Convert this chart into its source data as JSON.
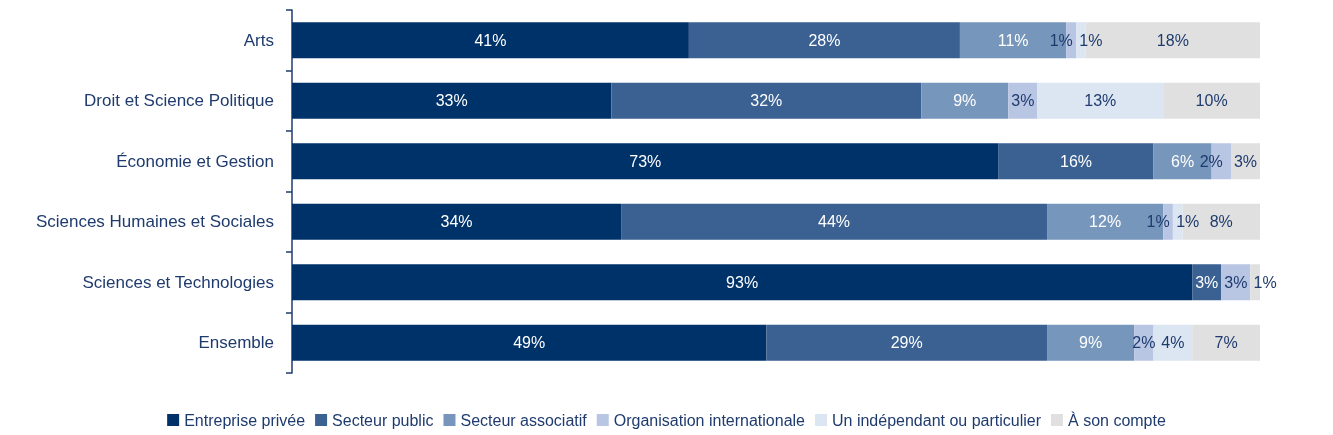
{
  "chart_data": {
    "type": "bar",
    "orientation": "horizontal",
    "stacked": true,
    "legend": "bottom",
    "grid": false,
    "categories": [
      "Arts",
      "Droit et Science Politique",
      "Économie et Gestion",
      "Sciences Humaines et Sociales",
      "Sciences et Technologies",
      "Ensemble"
    ],
    "series": [
      {
        "name": "Entreprise privée",
        "color": "#00326a",
        "values": [
          41,
          33,
          73,
          34,
          93,
          49
        ],
        "value_labels": [
          "41%",
          "33%",
          "73%",
          "34%",
          "93%",
          "49%"
        ]
      },
      {
        "name": "Secteur public",
        "color": "#3a6191",
        "values": [
          28,
          32,
          16,
          44,
          3,
          29
        ],
        "value_labels": [
          "28%",
          "32%",
          "16%",
          "44%",
          "3%",
          "29%"
        ]
      },
      {
        "name": "Secteur associatif",
        "color": "#7796bb",
        "values": [
          11,
          9,
          6,
          12,
          null,
          9
        ],
        "value_labels": [
          "11%",
          "9%",
          "6%",
          "12%",
          null,
          "9%"
        ]
      },
      {
        "name": "Organisation internationale",
        "color": "#b8c5e3",
        "values": [
          1,
          3,
          2,
          1,
          3,
          2
        ],
        "value_labels": [
          "1%",
          "3%",
          "2%",
          "1%",
          "3%",
          "2%"
        ]
      },
      {
        "name": "Un indépendant ou particulier",
        "color": "#dce5f2",
        "values": [
          1,
          13,
          null,
          1,
          null,
          4
        ],
        "value_labels": [
          "1%",
          "13%",
          null,
          "1%",
          null,
          "4%"
        ]
      },
      {
        "name": "À son compte",
        "color": "#e0e0e0",
        "values": [
          18,
          10,
          3,
          8,
          1,
          7
        ],
        "value_labels": [
          "18%",
          "10%",
          "3%",
          "8%",
          "1%",
          "7%"
        ]
      }
    ]
  }
}
